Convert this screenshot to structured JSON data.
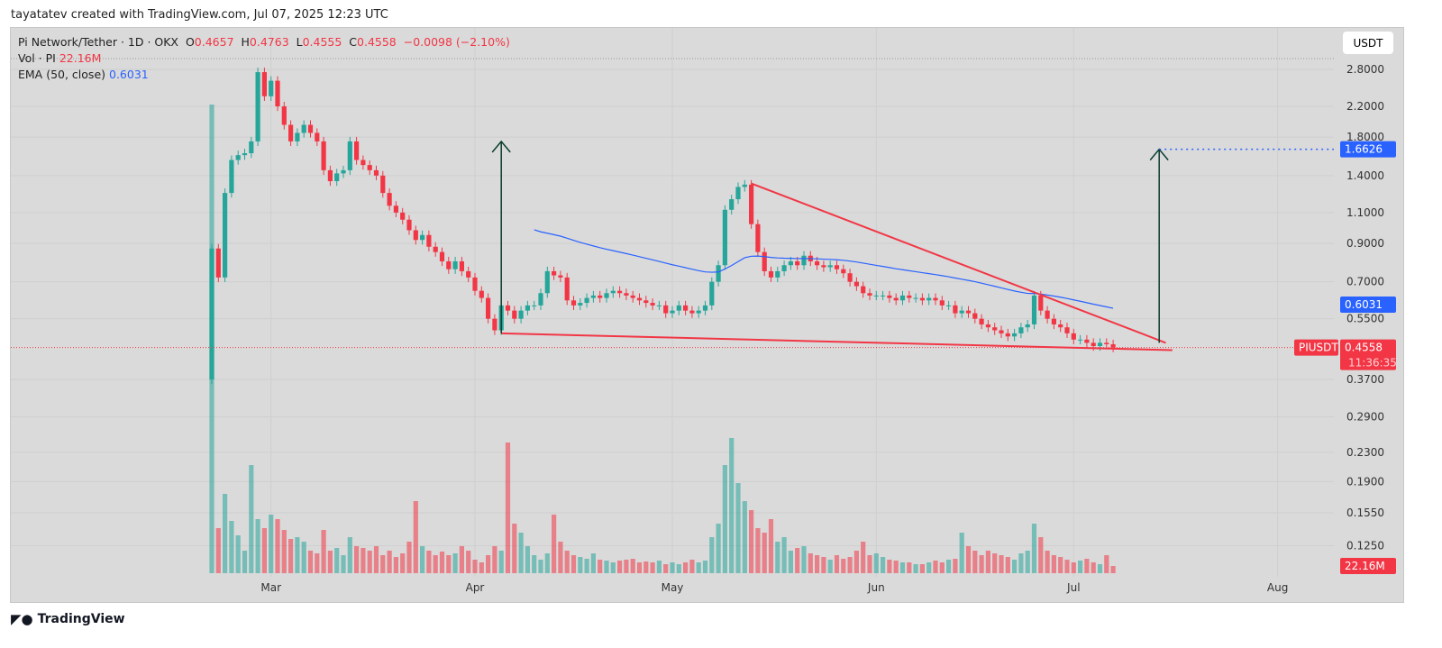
{
  "credit": "tayatatev created with TradingView.com, Jul 07, 2025 12:23 UTC",
  "legend": {
    "symbol": "Pi Network/Tether · 1D · OKX",
    "o_label": "O",
    "o": "0.4657",
    "h_label": "H",
    "h": "0.4763",
    "l_label": "L",
    "l": "0.4555",
    "c_label": "C",
    "c": "0.4558",
    "change": "−0.0098 (−2.10%)",
    "vol_label": "Vol · PI",
    "vol": "22.16M",
    "ema_label": "EMA (50, close)",
    "ema": "0.6031"
  },
  "currency": "USDT",
  "footer": "TradingView",
  "colors": {
    "up": "#26a69a",
    "down": "#f23645",
    "ema": "#2962ff",
    "trend": "#f23645",
    "arrow": "#0b3d2e"
  },
  "chart_data": {
    "type": "candlestick",
    "start_date": "2025-02-20",
    "scale": "log",
    "grid": true,
    "y_ticks": [
      "2.8000",
      "2.2000",
      "1.8000",
      "1.4000",
      "1.1000",
      "0.9000",
      "0.7000",
      "0.5500",
      "0.3700",
      "0.2900",
      "0.2300",
      "0.1900",
      "0.1550",
      "0.1250"
    ],
    "x_ticks": [
      {
        "label": "Mar",
        "date": "2025-03-01"
      },
      {
        "label": "Apr",
        "date": "2025-04-01"
      },
      {
        "label": "May",
        "date": "2025-05-01"
      },
      {
        "label": "Jun",
        "date": "2025-06-01"
      },
      {
        "label": "Jul",
        "date": "2025-07-01"
      },
      {
        "label": "Aug",
        "date": "2025-08-01"
      }
    ],
    "close": [
      0.87,
      0.72,
      1.25,
      1.55,
      1.6,
      1.62,
      1.75,
      2.75,
      2.35,
      2.6,
      2.2,
      1.95,
      1.75,
      1.85,
      1.95,
      1.85,
      1.75,
      1.45,
      1.35,
      1.42,
      1.45,
      1.75,
      1.55,
      1.5,
      1.45,
      1.4,
      1.25,
      1.15,
      1.1,
      1.05,
      0.98,
      0.92,
      0.95,
      0.88,
      0.85,
      0.8,
      0.76,
      0.8,
      0.75,
      0.72,
      0.66,
      0.63,
      0.55,
      0.51,
      0.6,
      0.58,
      0.55,
      0.58,
      0.6,
      0.6,
      0.65,
      0.75,
      0.73,
      0.72,
      0.62,
      0.6,
      0.61,
      0.63,
      0.64,
      0.63,
      0.65,
      0.66,
      0.65,
      0.64,
      0.63,
      0.62,
      0.61,
      0.6,
      0.6,
      0.57,
      0.58,
      0.6,
      0.58,
      0.57,
      0.58,
      0.6,
      0.7,
      0.78,
      1.12,
      1.2,
      1.3,
      1.32,
      1.02,
      0.85,
      0.75,
      0.72,
      0.75,
      0.78,
      0.8,
      0.78,
      0.83,
      0.8,
      0.78,
      0.77,
      0.78,
      0.76,
      0.74,
      0.7,
      0.68,
      0.65,
      0.64,
      0.64,
      0.64,
      0.63,
      0.62,
      0.64,
      0.63,
      0.63,
      0.62,
      0.63,
      0.62,
      0.6,
      0.6,
      0.57,
      0.58,
      0.57,
      0.55,
      0.53,
      0.52,
      0.51,
      0.5,
      0.49,
      0.5,
      0.52,
      0.53,
      0.64,
      0.58,
      0.55,
      0.53,
      0.52,
      0.5,
      0.48,
      0.48,
      0.47,
      0.46,
      0.47,
      0.4657,
      0.4558
    ],
    "volume_relative": [
      520,
      50,
      88,
      58,
      42,
      25,
      120,
      60,
      50,
      65,
      60,
      48,
      38,
      40,
      35,
      25,
      22,
      48,
      25,
      28,
      20,
      40,
      30,
      28,
      25,
      30,
      20,
      25,
      18,
      22,
      35,
      80,
      30,
      25,
      20,
      24,
      20,
      22,
      30,
      25,
      15,
      12,
      20,
      30,
      25,
      145,
      55,
      45,
      30,
      20,
      15,
      22,
      65,
      35,
      25,
      20,
      18,
      16,
      22,
      15,
      14,
      12,
      14,
      15,
      16,
      12,
      13,
      12,
      14,
      10,
      12,
      10,
      12,
      15,
      12,
      14,
      40,
      55,
      120,
      150,
      100,
      80,
      70,
      50,
      45,
      60,
      35,
      40,
      25,
      28,
      30,
      22,
      20,
      18,
      15,
      20,
      16,
      18,
      25,
      35,
      20,
      22,
      18,
      15,
      14,
      12,
      12,
      10,
      10,
      12,
      14,
      12,
      15,
      16,
      45,
      30,
      25,
      20,
      25,
      22,
      20,
      18,
      15,
      22,
      25,
      55,
      40,
      25,
      20,
      18,
      15,
      12,
      14,
      16,
      12,
      10,
      20,
      8
    ],
    "last_price": {
      "symbol": "PIUSDT",
      "price": "0.4558",
      "countdown": "11:36:35"
    },
    "ema_label": "0.6031",
    "target_label": "1.6626",
    "volume_label": "22.16M",
    "annotations": {
      "trend_upper": [
        [
          "2025-05-13",
          1.33
        ],
        [
          "2025-07-15",
          0.47
        ]
      ],
      "trend_lower": [
        [
          "2025-04-05",
          0.5
        ],
        [
          "2025-07-16",
          0.448
        ]
      ],
      "arrows": [
        [
          [
            "2025-04-05",
            0.5
          ],
          [
            "2025-04-05",
            1.75
          ]
        ],
        [
          [
            "2025-07-14",
            0.47
          ],
          [
            "2025-07-14",
            1.6626
          ]
        ]
      ],
      "target_line": {
        "from": "2025-07-14",
        "price": 1.6626
      }
    }
  }
}
